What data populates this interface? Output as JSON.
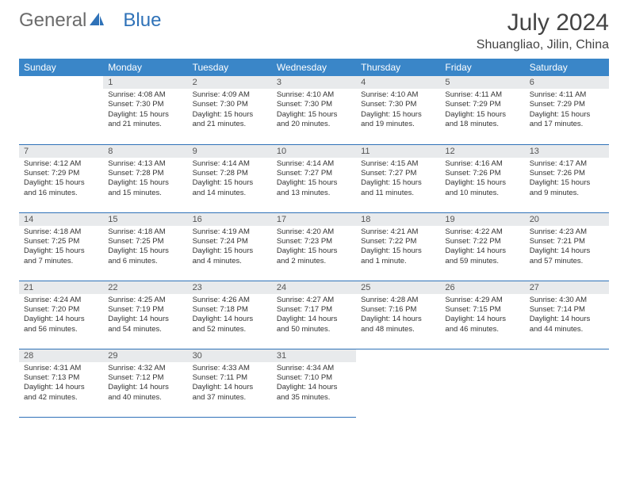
{
  "brand": {
    "part1": "General",
    "part2": "Blue",
    "accent_color": "#2f72b8",
    "gray_color": "#6b6b6b"
  },
  "title": "July 2024",
  "location": "Shuangliao, Jilin, China",
  "header_bg": "#3a86c8",
  "daynum_bg": "#e8eaec",
  "row_border": "#2f72b8",
  "weekdays": [
    "Sunday",
    "Monday",
    "Tuesday",
    "Wednesday",
    "Thursday",
    "Friday",
    "Saturday"
  ],
  "weeks": [
    [
      null,
      {
        "n": "1",
        "sunrise": "4:08 AM",
        "sunset": "7:30 PM",
        "daylight": "15 hours and 21 minutes."
      },
      {
        "n": "2",
        "sunrise": "4:09 AM",
        "sunset": "7:30 PM",
        "daylight": "15 hours and 21 minutes."
      },
      {
        "n": "3",
        "sunrise": "4:10 AM",
        "sunset": "7:30 PM",
        "daylight": "15 hours and 20 minutes."
      },
      {
        "n": "4",
        "sunrise": "4:10 AM",
        "sunset": "7:30 PM",
        "daylight": "15 hours and 19 minutes."
      },
      {
        "n": "5",
        "sunrise": "4:11 AM",
        "sunset": "7:29 PM",
        "daylight": "15 hours and 18 minutes."
      },
      {
        "n": "6",
        "sunrise": "4:11 AM",
        "sunset": "7:29 PM",
        "daylight": "15 hours and 17 minutes."
      }
    ],
    [
      {
        "n": "7",
        "sunrise": "4:12 AM",
        "sunset": "7:29 PM",
        "daylight": "15 hours and 16 minutes."
      },
      {
        "n": "8",
        "sunrise": "4:13 AM",
        "sunset": "7:28 PM",
        "daylight": "15 hours and 15 minutes."
      },
      {
        "n": "9",
        "sunrise": "4:14 AM",
        "sunset": "7:28 PM",
        "daylight": "15 hours and 14 minutes."
      },
      {
        "n": "10",
        "sunrise": "4:14 AM",
        "sunset": "7:27 PM",
        "daylight": "15 hours and 13 minutes."
      },
      {
        "n": "11",
        "sunrise": "4:15 AM",
        "sunset": "7:27 PM",
        "daylight": "15 hours and 11 minutes."
      },
      {
        "n": "12",
        "sunrise": "4:16 AM",
        "sunset": "7:26 PM",
        "daylight": "15 hours and 10 minutes."
      },
      {
        "n": "13",
        "sunrise": "4:17 AM",
        "sunset": "7:26 PM",
        "daylight": "15 hours and 9 minutes."
      }
    ],
    [
      {
        "n": "14",
        "sunrise": "4:18 AM",
        "sunset": "7:25 PM",
        "daylight": "15 hours and 7 minutes."
      },
      {
        "n": "15",
        "sunrise": "4:18 AM",
        "sunset": "7:25 PM",
        "daylight": "15 hours and 6 minutes."
      },
      {
        "n": "16",
        "sunrise": "4:19 AM",
        "sunset": "7:24 PM",
        "daylight": "15 hours and 4 minutes."
      },
      {
        "n": "17",
        "sunrise": "4:20 AM",
        "sunset": "7:23 PM",
        "daylight": "15 hours and 2 minutes."
      },
      {
        "n": "18",
        "sunrise": "4:21 AM",
        "sunset": "7:22 PM",
        "daylight": "15 hours and 1 minute."
      },
      {
        "n": "19",
        "sunrise": "4:22 AM",
        "sunset": "7:22 PM",
        "daylight": "14 hours and 59 minutes."
      },
      {
        "n": "20",
        "sunrise": "4:23 AM",
        "sunset": "7:21 PM",
        "daylight": "14 hours and 57 minutes."
      }
    ],
    [
      {
        "n": "21",
        "sunrise": "4:24 AM",
        "sunset": "7:20 PM",
        "daylight": "14 hours and 56 minutes."
      },
      {
        "n": "22",
        "sunrise": "4:25 AM",
        "sunset": "7:19 PM",
        "daylight": "14 hours and 54 minutes."
      },
      {
        "n": "23",
        "sunrise": "4:26 AM",
        "sunset": "7:18 PM",
        "daylight": "14 hours and 52 minutes."
      },
      {
        "n": "24",
        "sunrise": "4:27 AM",
        "sunset": "7:17 PM",
        "daylight": "14 hours and 50 minutes."
      },
      {
        "n": "25",
        "sunrise": "4:28 AM",
        "sunset": "7:16 PM",
        "daylight": "14 hours and 48 minutes."
      },
      {
        "n": "26",
        "sunrise": "4:29 AM",
        "sunset": "7:15 PM",
        "daylight": "14 hours and 46 minutes."
      },
      {
        "n": "27",
        "sunrise": "4:30 AM",
        "sunset": "7:14 PM",
        "daylight": "14 hours and 44 minutes."
      }
    ],
    [
      {
        "n": "28",
        "sunrise": "4:31 AM",
        "sunset": "7:13 PM",
        "daylight": "14 hours and 42 minutes."
      },
      {
        "n": "29",
        "sunrise": "4:32 AM",
        "sunset": "7:12 PM",
        "daylight": "14 hours and 40 minutes."
      },
      {
        "n": "30",
        "sunrise": "4:33 AM",
        "sunset": "7:11 PM",
        "daylight": "14 hours and 37 minutes."
      },
      {
        "n": "31",
        "sunrise": "4:34 AM",
        "sunset": "7:10 PM",
        "daylight": "14 hours and 35 minutes."
      },
      null,
      null,
      null
    ]
  ],
  "labels": {
    "sunrise": "Sunrise:",
    "sunset": "Sunset:",
    "daylight": "Daylight:"
  }
}
